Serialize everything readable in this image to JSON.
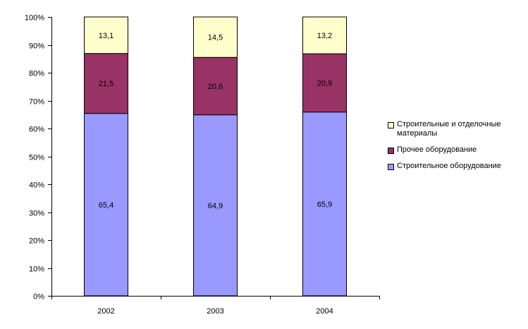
{
  "chart_data": {
    "type": "bar",
    "stacked": true,
    "percent_stacked": true,
    "categories": [
      "2002",
      "2003",
      "2004"
    ],
    "series": [
      {
        "name": "Строительное оборудование",
        "values": [
          65.4,
          64.9,
          65.9
        ],
        "color": "#9999ff"
      },
      {
        "name": "Прочее оборудование",
        "values": [
          21.5,
          20.6,
          20.9
        ],
        "color": "#993366"
      },
      {
        "name": "Строительные и отделочные материалы",
        "values": [
          13.1,
          14.5,
          13.2
        ],
        "color": "#ffffcc"
      }
    ],
    "data_labels": [
      [
        "65,4",
        "64,9",
        "65,9"
      ],
      [
        "21,5",
        "20,6",
        "20,9"
      ],
      [
        "13,1",
        "14,5",
        "13,2"
      ]
    ],
    "y_ticks": [
      "0%",
      "10%",
      "20%",
      "30%",
      "40%",
      "50%",
      "60%",
      "70%",
      "80%",
      "90%",
      "100%"
    ],
    "ylim": [
      0,
      100
    ],
    "grid": false,
    "legend_position": "right",
    "legend_order": [
      2,
      1,
      0
    ],
    "title": "",
    "xlabel": "",
    "ylabel": ""
  }
}
